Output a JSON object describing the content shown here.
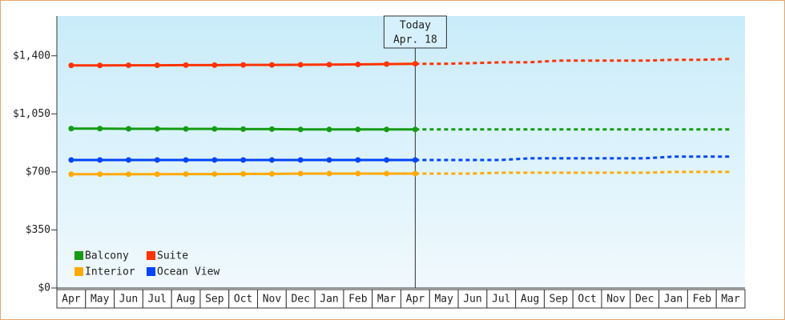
{
  "chart_data": {
    "type": "line",
    "categories": [
      "Apr",
      "May",
      "Jun",
      "Jul",
      "Aug",
      "Sep",
      "Oct",
      "Nov",
      "Dec",
      "Jan",
      "Feb",
      "Mar",
      "Apr",
      "May",
      "Jun",
      "Jul",
      "Aug",
      "Sep",
      "Oct",
      "Nov",
      "Dec",
      "Jan",
      "Feb",
      "Mar"
    ],
    "annotation": {
      "title": "Today",
      "date": "Apr. 18"
    },
    "ylim": [
      0,
      1640
    ],
    "yticks": [
      {
        "value": 0,
        "label": "$0"
      },
      {
        "value": 350,
        "label": "$350"
      },
      {
        "value": 700,
        "label": "$700"
      },
      {
        "value": 1050,
        "label": "$1,050"
      },
      {
        "value": 1400,
        "label": "$1,400"
      }
    ],
    "legend": "lower left",
    "series": [
      {
        "name": "Balcony",
        "color": "#149c14",
        "values": [
          961,
          961,
          960,
          960,
          959,
          959,
          958,
          958,
          956,
          956,
          956,
          956,
          956,
          null,
          null,
          null,
          null,
          null,
          null,
          null,
          null,
          null,
          null,
          null
        ],
        "forecast": [
          null,
          null,
          null,
          null,
          null,
          null,
          null,
          null,
          null,
          null,
          null,
          null,
          956,
          956,
          956,
          956,
          956,
          956,
          956,
          956,
          956,
          956,
          956,
          956
        ]
      },
      {
        "name": "Suite",
        "color": "#ff3300",
        "values": [
          1342,
          1342,
          1343,
          1343,
          1344,
          1344,
          1345,
          1345,
          1346,
          1347,
          1348,
          1350,
          1352,
          null,
          null,
          null,
          null,
          null,
          null,
          null,
          null,
          null,
          null,
          null
        ],
        "forecast": [
          null,
          null,
          null,
          null,
          null,
          null,
          null,
          null,
          null,
          null,
          null,
          null,
          1352,
          1352,
          1356,
          1361,
          1361,
          1371,
          1371,
          1371,
          1371,
          1376,
          1376,
          1381
        ]
      },
      {
        "name": "Interior",
        "color": "#ffaa00",
        "values": [
          686,
          686,
          686,
          686,
          687,
          687,
          688,
          688,
          690,
          690,
          690,
          690,
          690,
          null,
          null,
          null,
          null,
          null,
          null,
          null,
          null,
          null,
          null,
          null
        ],
        "forecast": [
          null,
          null,
          null,
          null,
          null,
          null,
          null,
          null,
          null,
          null,
          null,
          null,
          690,
          690,
          690,
          695,
          695,
          695,
          695,
          695,
          695,
          700,
          700,
          700
        ]
      },
      {
        "name": "Ocean View",
        "color": "#0044ff",
        "values": [
          772,
          772,
          772,
          772,
          772,
          772,
          772,
          772,
          772,
          772,
          772,
          772,
          772,
          null,
          null,
          null,
          null,
          null,
          null,
          null,
          null,
          null,
          null,
          null
        ],
        "forecast": [
          null,
          null,
          null,
          null,
          null,
          null,
          null,
          null,
          null,
          null,
          null,
          null,
          772,
          772,
          772,
          772,
          782,
          782,
          782,
          782,
          782,
          792,
          792,
          792
        ]
      }
    ]
  }
}
